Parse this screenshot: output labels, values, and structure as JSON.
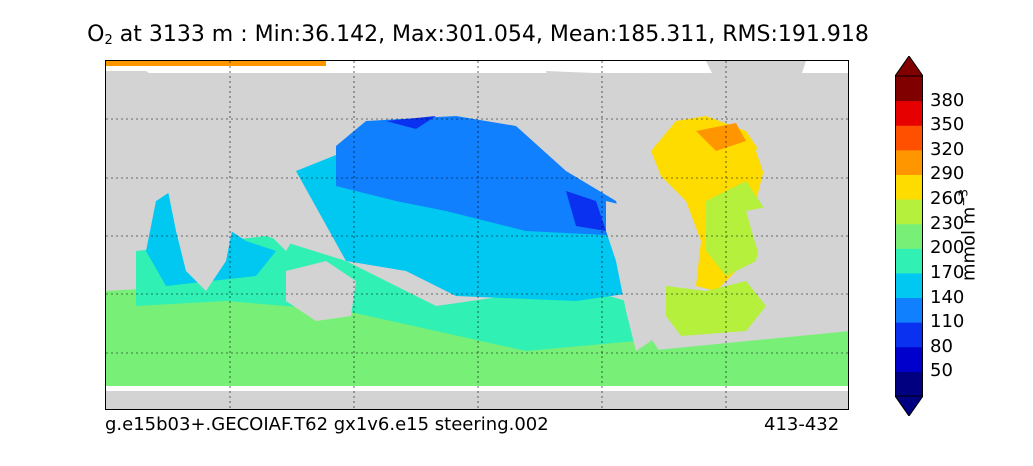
{
  "title": {
    "species": "O",
    "species_sub": "2",
    "depth_text": " at 3133 m : ",
    "stats": "Min:36.142, Max:301.054, Mean:185.311, RMS:191.918"
  },
  "footer": {
    "left": "g.e15b03+.GECOIAF.T62 gx1v6.e15 steering.002",
    "right": "413-432"
  },
  "colorbar": {
    "ticks": [
      "380",
      "350",
      "320",
      "290",
      "260",
      "230",
      "200",
      "170",
      "140",
      "110",
      "80",
      "50"
    ],
    "unit_main": "mmol m",
    "unit_exp": "−3",
    "colors": [
      "#000080",
      "#0000cd",
      "#0a30f0",
      "#1080ff",
      "#00c8f0",
      "#30f0b4",
      "#78f078",
      "#b4f03c",
      "#ffdc00",
      "#ff9600",
      "#ff5000",
      "#e60000",
      "#800000"
    ]
  },
  "map": {
    "land_color": "#d3d3d3",
    "missing_color": "#ffffff",
    "gridlines": "dotted"
  }
}
